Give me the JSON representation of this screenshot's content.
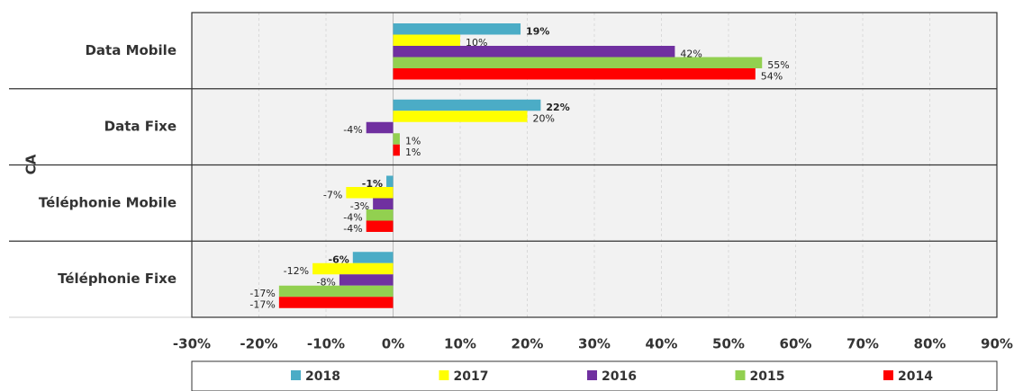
{
  "chart_data": {
    "type": "bar",
    "orientation": "horizontal",
    "y_label": "CA",
    "categories": [
      "Data Mobile",
      "Data Fixe",
      "Téléphonie Mobile",
      "Téléphonie Fixe"
    ],
    "series": [
      {
        "name": "2018",
        "color": "#4bacc6",
        "values": [
          19,
          22,
          -1,
          -6
        ],
        "value_labels": [
          "19%",
          "22%",
          "-1%",
          "-6%"
        ]
      },
      {
        "name": "2017",
        "color": "#ffff00",
        "values": [
          10,
          20,
          -7,
          -12
        ],
        "value_labels": [
          "10%",
          "20%",
          "-7%",
          "-12%"
        ]
      },
      {
        "name": "2016",
        "color": "#7030a0",
        "values": [
          42,
          -4,
          -3,
          -8
        ],
        "value_labels": [
          "42%",
          "-4%",
          "-3%",
          "-8%"
        ]
      },
      {
        "name": "2015",
        "color": "#92d050",
        "values": [
          55,
          1,
          -4,
          -17
        ],
        "value_labels": [
          "55%",
          "1%",
          "-4%",
          "-17%"
        ]
      },
      {
        "name": "2014",
        "color": "#ff0000",
        "values": [
          54,
          1,
          -4,
          -17
        ],
        "value_labels": [
          "54%",
          "1%",
          "-4%",
          "-17%"
        ]
      }
    ],
    "xlim": [
      -30,
      90
    ],
    "xticks": [
      {
        "value": -30,
        "label": "-30%"
      },
      {
        "value": -20,
        "label": "-20%"
      },
      {
        "value": -10,
        "label": "-10%"
      },
      {
        "value": 0,
        "label": "0%"
      },
      {
        "value": 10,
        "label": "10%"
      },
      {
        "value": 20,
        "label": "20%"
      },
      {
        "value": 30,
        "label": "30%"
      },
      {
        "value": 40,
        "label": "40%"
      },
      {
        "value": 50,
        "label": "50%"
      },
      {
        "value": 60,
        "label": "60%"
      },
      {
        "value": 70,
        "label": "70%"
      },
      {
        "value": 80,
        "label": "80%"
      },
      {
        "value": 90,
        "label": "90%"
      }
    ],
    "grid": true,
    "legend": "bottom"
  }
}
